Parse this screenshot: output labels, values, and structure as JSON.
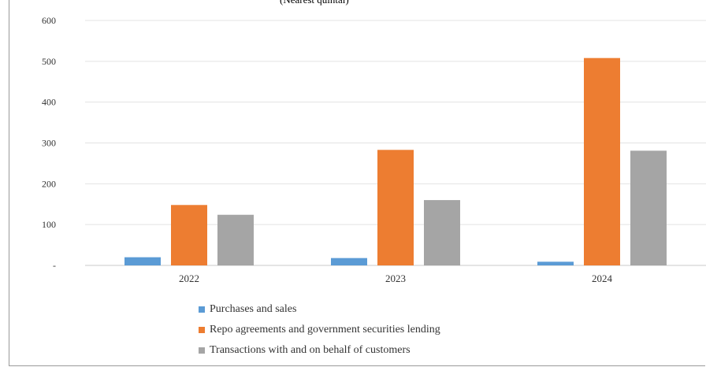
{
  "chart_data": {
    "type": "bar",
    "title": "(Nearest quintal)",
    "categories": [
      "2022",
      "2023",
      "2024"
    ],
    "series": [
      {
        "name": "Purchases and sales",
        "values": [
          20,
          18,
          9
        ],
        "color": "#5B9BD5"
      },
      {
        "name": "Repo agreements and government securities lending",
        "values": [
          148,
          283,
          508
        ],
        "color": "#ED7D31"
      },
      {
        "name": "Transactions with and on behalf of customers",
        "values": [
          124,
          160,
          281
        ],
        "color": "#A5A5A5"
      }
    ],
    "ylim": [
      0,
      600
    ],
    "yticks": [
      "-",
      "100",
      "200",
      "300",
      "400",
      "500",
      "600"
    ],
    "grid": true,
    "legend_position": "bottom"
  }
}
